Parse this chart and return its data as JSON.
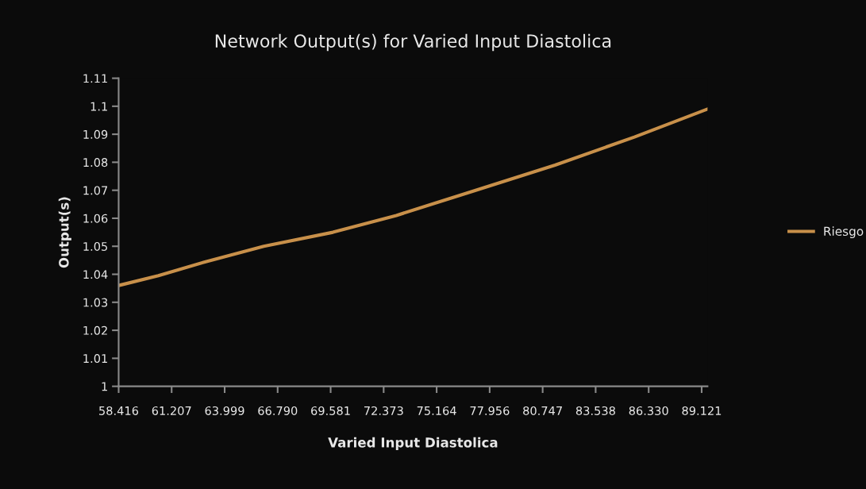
{
  "chart_data": {
    "type": "line",
    "title": "Network Output(s) for Varied Input Diastolica",
    "xlabel": "Varied Input Diastolica",
    "ylabel": "Output(s)",
    "x": [
      58.416,
      60.51,
      63.0,
      66.06,
      69.7,
      73.04,
      77.22,
      81.4,
      85.58,
      89.43
    ],
    "series": [
      {
        "name": "Riesgo",
        "color": "#c8904a",
        "values": [
          1.036,
          1.0395,
          1.0445,
          1.05,
          1.055,
          1.061,
          1.07,
          1.079,
          1.089,
          1.099
        ]
      }
    ],
    "xlim": [
      58.416,
      89.43
    ],
    "xticks": [
      58.416,
      61.207,
      63.999,
      {
        "value": 66.79,
        "label": "66.790"
      },
      69.581,
      72.373,
      75.164,
      77.956,
      80.747,
      83.538,
      {
        "value": 86.33,
        "label": "86.330"
      },
      89.121
    ],
    "ylim": [
      1,
      1.11
    ],
    "yticks": [
      1,
      1.01,
      1.02,
      1.03,
      1.04,
      1.05,
      1.06,
      1.07,
      1.08,
      1.09,
      1.1,
      1.11
    ],
    "grid": false,
    "legend": "right",
    "marker": "none",
    "line_style": "solid"
  }
}
